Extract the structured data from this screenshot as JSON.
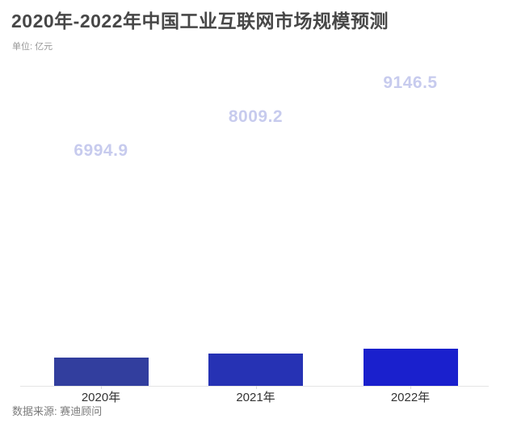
{
  "chart_data": {
    "type": "bar",
    "title": "2020年-2022年中国工业互联网市场规模预测",
    "unit_label": "单位: 亿元",
    "categories": [
      "2020年",
      "2021年",
      "2022年"
    ],
    "values": [
      6994.9,
      8009.2,
      9146.5
    ],
    "value_labels": [
      "6994.9",
      "8009.2",
      "9146.5"
    ],
    "series_name": "中国工业互联网市场规模",
    "ylabel": "亿元",
    "xlabel": "",
    "grid": false,
    "legend_position": "none",
    "bar_colors": [
      "#323e9e",
      "#2632b4",
      "#1a20cd"
    ],
    "value_label_color": "#c7cbee",
    "axis_line_color": "#e4e4e4",
    "source": "数据来源: 赛迪顾问"
  }
}
